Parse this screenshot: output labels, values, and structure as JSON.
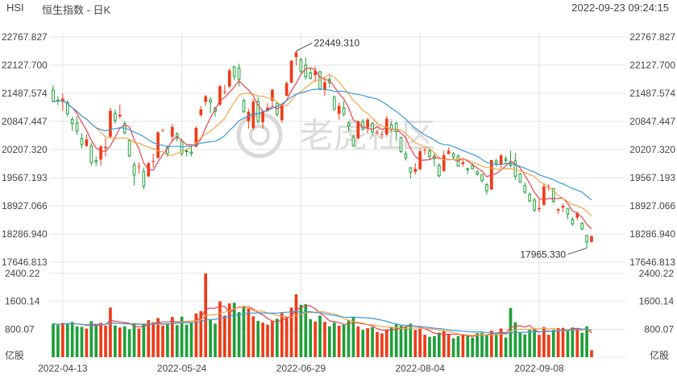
{
  "header": {
    "symbol": "HSI",
    "name": "恒生指数 - 日K",
    "datetime": "2022-09-23 09:24:15"
  },
  "watermark": "老虎社区",
  "colors": {
    "up": "#f03a17",
    "down": "#1e9f3a",
    "ma_red": "#e8424f",
    "ma_orange": "#f7a44a",
    "ma_blue": "#3d9ad6",
    "grid": "#e3e3e3",
    "text": "#444444"
  },
  "chart_data": {
    "type": "candlestick",
    "price_axis": {
      "ticks": [
        "22767.827",
        "22127.700",
        "21487.574",
        "20847.447",
        "20207.320",
        "19567.193",
        "18927.066",
        "18286.940",
        "17646.813"
      ],
      "ylim": [
        17646.813,
        22767.827
      ]
    },
    "volume_axis": {
      "ticks": [
        "2400.22",
        "1600.14",
        "800.07"
      ],
      "unit_label": "亿股",
      "ylim": [
        0,
        2400.22
      ]
    },
    "x_labels": [
      "2022-04-13",
      "2022-05-24",
      "2022-06-29",
      "2022-08-04",
      "2022-09-08"
    ],
    "annotations": [
      {
        "text": "22449.310",
        "kind": "high"
      },
      {
        "text": "17965.330",
        "kind": "low"
      }
    ],
    "candles": [
      {
        "d": "2022-04-11",
        "o": 21560,
        "h": 21680,
        "l": 21280,
        "c": 21300,
        "v": 960
      },
      {
        "d": "2022-04-12",
        "o": 21330,
        "h": 21420,
        "l": 21220,
        "c": 21320,
        "v": 920
      },
      {
        "d": "2022-04-13",
        "o": 21290,
        "h": 21480,
        "l": 21090,
        "c": 21370,
        "v": 980
      },
      {
        "d": "2022-04-14",
        "o": 21280,
        "h": 21330,
        "l": 20960,
        "c": 21020,
        "v": 970
      },
      {
        "d": "2022-04-19",
        "o": 20890,
        "h": 20960,
        "l": 20640,
        "c": 20800,
        "v": 1010
      },
      {
        "d": "2022-04-20",
        "o": 20810,
        "h": 20970,
        "l": 20540,
        "c": 20630,
        "v": 880
      },
      {
        "d": "2022-04-21",
        "o": 20460,
        "h": 20580,
        "l": 20230,
        "c": 20320,
        "v": 870
      },
      {
        "d": "2022-04-22",
        "o": 20290,
        "h": 20560,
        "l": 20270,
        "c": 20440,
        "v": 820
      },
      {
        "d": "2022-04-25",
        "o": 20290,
        "h": 20360,
        "l": 19840,
        "c": 19910,
        "v": 1030
      },
      {
        "d": "2022-04-26",
        "o": 19960,
        "h": 20050,
        "l": 19830,
        "c": 19930,
        "v": 940
      },
      {
        "d": "2022-04-27",
        "o": 19980,
        "h": 20310,
        "l": 19840,
        "c": 20280,
        "v": 980
      },
      {
        "d": "2022-04-28",
        "o": 20240,
        "h": 20470,
        "l": 20050,
        "c": 20270,
        "v": 900
      },
      {
        "d": "2022-04-29",
        "o": 20500,
        "h": 21160,
        "l": 20480,
        "c": 21090,
        "v": 1420
      },
      {
        "d": "2022-05-04",
        "o": 21030,
        "h": 21120,
        "l": 20800,
        "c": 20870,
        "v": 910
      },
      {
        "d": "2022-05-05",
        "o": 20960,
        "h": 21230,
        "l": 20910,
        "c": 21000,
        "v": 850
      },
      {
        "d": "2022-05-06",
        "o": 20800,
        "h": 20850,
        "l": 20550,
        "c": 20590,
        "v": 880
      },
      {
        "d": "2022-05-09",
        "o": 20420,
        "h": 20440,
        "l": 20040,
        "c": 20060,
        "v": 800
      },
      {
        "d": "2022-05-10",
        "o": 19860,
        "h": 19930,
        "l": 19390,
        "c": 19630,
        "v": 980
      },
      {
        "d": "2022-05-11",
        "o": 19820,
        "h": 19920,
        "l": 19660,
        "c": 19830,
        "v": 820
      },
      {
        "d": "2022-05-12",
        "o": 19710,
        "h": 19800,
        "l": 19300,
        "c": 19380,
        "v": 960
      },
      {
        "d": "2022-05-13",
        "o": 19600,
        "h": 19930,
        "l": 19580,
        "c": 19900,
        "v": 1060
      },
      {
        "d": "2022-05-16",
        "o": 19950,
        "h": 20110,
        "l": 19800,
        "c": 19950,
        "v": 1000
      },
      {
        "d": "2022-05-17",
        "o": 20020,
        "h": 20620,
        "l": 20000,
        "c": 20600,
        "v": 1120
      },
      {
        "d": "2022-05-18",
        "o": 20640,
        "h": 20680,
        "l": 20620,
        "c": 20640,
        "v": 900
      },
      {
        "d": "2022-05-19",
        "o": 20250,
        "h": 20310,
        "l": 20040,
        "c": 20120,
        "v": 970
      },
      {
        "d": "2022-05-20",
        "o": 20500,
        "h": 20790,
        "l": 20380,
        "c": 20720,
        "v": 1150
      },
      {
        "d": "2022-05-23",
        "o": 20560,
        "h": 20610,
        "l": 20390,
        "c": 20470,
        "v": 920
      },
      {
        "d": "2022-05-24",
        "o": 20400,
        "h": 20460,
        "l": 20060,
        "c": 20110,
        "v": 1160
      },
      {
        "d": "2022-05-25",
        "o": 20180,
        "h": 20230,
        "l": 20050,
        "c": 20170,
        "v": 930
      },
      {
        "d": "2022-05-26",
        "o": 20150,
        "h": 20300,
        "l": 20050,
        "c": 20120,
        "v": 980
      },
      {
        "d": "2022-05-27",
        "o": 20270,
        "h": 20740,
        "l": 20260,
        "c": 20700,
        "v": 1250
      },
      {
        "d": "2022-05-30",
        "o": 20990,
        "h": 21200,
        "l": 20960,
        "c": 21120,
        "v": 1320
      },
      {
        "d": "2022-05-31",
        "o": 21290,
        "h": 21450,
        "l": 21200,
        "c": 21420,
        "v": 2400
      },
      {
        "d": "2022-06-01",
        "o": 21340,
        "h": 21400,
        "l": 21030,
        "c": 21290,
        "v": 1080
      },
      {
        "d": "2022-06-02",
        "o": 21160,
        "h": 21180,
        "l": 20960,
        "c": 21080,
        "v": 960
      },
      {
        "d": "2022-06-06",
        "o": 21230,
        "h": 21680,
        "l": 21200,
        "c": 21650,
        "v": 1600
      },
      {
        "d": "2022-06-07",
        "o": 21520,
        "h": 21680,
        "l": 21460,
        "c": 21530,
        "v": 1190
      },
      {
        "d": "2022-06-08",
        "o": 21640,
        "h": 22050,
        "l": 21600,
        "c": 22010,
        "v": 1540
      },
      {
        "d": "2022-06-09",
        "o": 22090,
        "h": 22110,
        "l": 21790,
        "c": 21870,
        "v": 1560
      },
      {
        "d": "2022-06-10",
        "o": 22060,
        "h": 22160,
        "l": 21640,
        "c": 21810,
        "v": 1290
      },
      {
        "d": "2022-06-13",
        "o": 21320,
        "h": 21370,
        "l": 21040,
        "c": 21070,
        "v": 1470
      },
      {
        "d": "2022-06-14",
        "o": 20850,
        "h": 21140,
        "l": 20680,
        "c": 21070,
        "v": 1400
      },
      {
        "d": "2022-06-15",
        "o": 20700,
        "h": 21360,
        "l": 20650,
        "c": 21300,
        "v": 1170
      },
      {
        "d": "2022-06-16",
        "o": 21300,
        "h": 21400,
        "l": 20800,
        "c": 20850,
        "v": 1040
      },
      {
        "d": "2022-06-17",
        "o": 20830,
        "h": 21100,
        "l": 20680,
        "c": 21080,
        "v": 990
      },
      {
        "d": "2022-06-20",
        "o": 21090,
        "h": 21260,
        "l": 21060,
        "c": 21160,
        "v": 930
      },
      {
        "d": "2022-06-21",
        "o": 21320,
        "h": 21580,
        "l": 21190,
        "c": 21570,
        "v": 1040
      },
      {
        "d": "2022-06-22",
        "o": 21260,
        "h": 21290,
        "l": 20950,
        "c": 21010,
        "v": 1100
      },
      {
        "d": "2022-06-23",
        "o": 20880,
        "h": 21240,
        "l": 20820,
        "c": 21210,
        "v": 1260
      },
      {
        "d": "2022-06-24",
        "o": 21430,
        "h": 21760,
        "l": 21420,
        "c": 21720,
        "v": 1150
      },
      {
        "d": "2022-06-27",
        "o": 21730,
        "h": 22240,
        "l": 21710,
        "c": 22230,
        "v": 1420
      },
      {
        "d": "2022-06-28",
        "o": 22310,
        "h": 22450,
        "l": 22120,
        "c": 22420,
        "v": 1800
      },
      {
        "d": "2022-06-29",
        "o": 22250,
        "h": 22300,
        "l": 21930,
        "c": 21990,
        "v": 1500
      },
      {
        "d": "2022-06-30",
        "o": 22130,
        "h": 22300,
        "l": 21800,
        "c": 21860,
        "v": 1520
      },
      {
        "d": "2022-07-04",
        "o": 21950,
        "h": 22070,
        "l": 21800,
        "c": 21830,
        "v": 1090
      },
      {
        "d": "2022-07-05",
        "o": 21900,
        "h": 22100,
        "l": 21740,
        "c": 22000,
        "v": 1020
      },
      {
        "d": "2022-07-06",
        "o": 21980,
        "h": 22000,
        "l": 21550,
        "c": 21590,
        "v": 1190
      },
      {
        "d": "2022-07-07",
        "o": 21560,
        "h": 21840,
        "l": 21430,
        "c": 21740,
        "v": 1010
      },
      {
        "d": "2022-07-08",
        "o": 21800,
        "h": 21880,
        "l": 21610,
        "c": 21730,
        "v": 880
      },
      {
        "d": "2022-07-11",
        "o": 21400,
        "h": 21440,
        "l": 21100,
        "c": 21120,
        "v": 990
      },
      {
        "d": "2022-07-12",
        "o": 21020,
        "h": 21280,
        "l": 20890,
        "c": 21200,
        "v": 900
      },
      {
        "d": "2022-07-13",
        "o": 21150,
        "h": 21310,
        "l": 20960,
        "c": 21010,
        "v": 930
      },
      {
        "d": "2022-07-14",
        "o": 20810,
        "h": 20850,
        "l": 20630,
        "c": 20750,
        "v": 1050
      },
      {
        "d": "2022-07-15",
        "o": 20490,
        "h": 20550,
        "l": 20260,
        "c": 20300,
        "v": 1130
      },
      {
        "d": "2022-07-18",
        "o": 20460,
        "h": 20880,
        "l": 20440,
        "c": 20850,
        "v": 880
      },
      {
        "d": "2022-07-19",
        "o": 20850,
        "h": 20900,
        "l": 20660,
        "c": 20670,
        "v": 780
      },
      {
        "d": "2022-07-20",
        "o": 20710,
        "h": 20930,
        "l": 20570,
        "c": 20890,
        "v": 830
      },
      {
        "d": "2022-07-21",
        "o": 20800,
        "h": 20840,
        "l": 20530,
        "c": 20610,
        "v": 860
      },
      {
        "d": "2022-07-22",
        "o": 20600,
        "h": 20650,
        "l": 20560,
        "c": 20600,
        "v": 720
      },
      {
        "d": "2022-07-25",
        "o": 20560,
        "h": 20620,
        "l": 20450,
        "c": 20560,
        "v": 680
      },
      {
        "d": "2022-07-26",
        "o": 20550,
        "h": 20980,
        "l": 20500,
        "c": 20910,
        "v": 790
      },
      {
        "d": "2022-07-27",
        "o": 20770,
        "h": 20850,
        "l": 20600,
        "c": 20670,
        "v": 860
      },
      {
        "d": "2022-07-28",
        "o": 20800,
        "h": 20840,
        "l": 20410,
        "c": 20620,
        "v": 940
      },
      {
        "d": "2022-07-29",
        "o": 20480,
        "h": 20500,
        "l": 20130,
        "c": 20160,
        "v": 900
      },
      {
        "d": "2022-08-01",
        "o": 20100,
        "h": 20180,
        "l": 19960,
        "c": 20020,
        "v": 870
      },
      {
        "d": "2022-08-02",
        "o": 19790,
        "h": 19810,
        "l": 19550,
        "c": 19690,
        "v": 960
      },
      {
        "d": "2022-08-03",
        "o": 19700,
        "h": 19900,
        "l": 19640,
        "c": 19770,
        "v": 780
      },
      {
        "d": "2022-08-04",
        "o": 19760,
        "h": 20240,
        "l": 19740,
        "c": 20170,
        "v": 810
      },
      {
        "d": "2022-08-05",
        "o": 20190,
        "h": 20240,
        "l": 20090,
        "c": 20200,
        "v": 640
      },
      {
        "d": "2022-08-08",
        "o": 20180,
        "h": 20220,
        "l": 19980,
        "c": 20050,
        "v": 580
      },
      {
        "d": "2022-08-09",
        "o": 20060,
        "h": 20120,
        "l": 19830,
        "c": 20000,
        "v": 600
      },
      {
        "d": "2022-08-10",
        "o": 19850,
        "h": 19900,
        "l": 19570,
        "c": 19610,
        "v": 700
      },
      {
        "d": "2022-08-11",
        "o": 19720,
        "h": 20180,
        "l": 19700,
        "c": 20080,
        "v": 760
      },
      {
        "d": "2022-08-12",
        "o": 20110,
        "h": 20260,
        "l": 20100,
        "c": 20180,
        "v": 650
      },
      {
        "d": "2022-08-15",
        "o": 20110,
        "h": 20150,
        "l": 19990,
        "c": 20040,
        "v": 540
      },
      {
        "d": "2022-08-16",
        "o": 20060,
        "h": 20100,
        "l": 19840,
        "c": 19830,
        "v": 600
      },
      {
        "d": "2022-08-17",
        "o": 19880,
        "h": 20010,
        "l": 19820,
        "c": 19920,
        "v": 640
      },
      {
        "d": "2022-08-18",
        "o": 19770,
        "h": 19800,
        "l": 19650,
        "c": 19760,
        "v": 620
      },
      {
        "d": "2022-08-19",
        "o": 19840,
        "h": 19910,
        "l": 19760,
        "c": 19770,
        "v": 560
      },
      {
        "d": "2022-08-22",
        "o": 19700,
        "h": 19740,
        "l": 19600,
        "c": 19650,
        "v": 690
      },
      {
        "d": "2022-08-23",
        "o": 19640,
        "h": 19650,
        "l": 19450,
        "c": 19500,
        "v": 700
      },
      {
        "d": "2022-08-24",
        "o": 19410,
        "h": 19450,
        "l": 19180,
        "c": 19270,
        "v": 640
      },
      {
        "d": "2022-08-25",
        "o": 19300,
        "h": 19970,
        "l": 19290,
        "c": 19970,
        "v": 760
      },
      {
        "d": "2022-08-26",
        "o": 19950,
        "h": 20010,
        "l": 19820,
        "c": 19900,
        "v": 670
      },
      {
        "d": "2022-08-29",
        "o": 19860,
        "h": 20100,
        "l": 19780,
        "c": 20080,
        "v": 820
      },
      {
        "d": "2022-08-30",
        "o": 19990,
        "h": 20060,
        "l": 19900,
        "c": 19960,
        "v": 560
      },
      {
        "d": "2022-08-31",
        "o": 19900,
        "h": 20180,
        "l": 19800,
        "c": 19850,
        "v": 1410
      },
      {
        "d": "2022-09-01",
        "o": 19950,
        "h": 20130,
        "l": 19520,
        "c": 19600,
        "v": 1000
      },
      {
        "d": "2022-09-02",
        "o": 19660,
        "h": 19680,
        "l": 19440,
        "c": 19470,
        "v": 700
      },
      {
        "d": "2022-09-05",
        "o": 19390,
        "h": 19460,
        "l": 19200,
        "c": 19240,
        "v": 650
      },
      {
        "d": "2022-09-06",
        "o": 19190,
        "h": 19230,
        "l": 19010,
        "c": 19040,
        "v": 780
      },
      {
        "d": "2022-09-07",
        "o": 19060,
        "h": 19110,
        "l": 18790,
        "c": 18830,
        "v": 820
      },
      {
        "d": "2022-09-08",
        "o": 18850,
        "h": 19100,
        "l": 18780,
        "c": 18880,
        "v": 640
      },
      {
        "d": "2022-09-09",
        "o": 18950,
        "h": 19420,
        "l": 18930,
        "c": 19370,
        "v": 860
      },
      {
        "d": "2022-09-12",
        "o": 19360,
        "h": 19420,
        "l": 19280,
        "c": 19360,
        "v": 640
      },
      {
        "d": "2022-09-13",
        "o": 19320,
        "h": 19330,
        "l": 18980,
        "c": 19030,
        "v": 780
      },
      {
        "d": "2022-09-14",
        "o": 18820,
        "h": 18870,
        "l": 18740,
        "c": 18850,
        "v": 830
      },
      {
        "d": "2022-09-15",
        "o": 18890,
        "h": 18980,
        "l": 18790,
        "c": 18930,
        "v": 840
      },
      {
        "d": "2022-09-16",
        "o": 18870,
        "h": 18880,
        "l": 18620,
        "c": 18740,
        "v": 780
      },
      {
        "d": "2022-09-19",
        "o": 18620,
        "h": 18680,
        "l": 18470,
        "c": 18520,
        "v": 850
      },
      {
        "d": "2022-09-20",
        "o": 18660,
        "h": 18800,
        "l": 18600,
        "c": 18760,
        "v": 830
      },
      {
        "d": "2022-09-21",
        "o": 18530,
        "h": 18560,
        "l": 18380,
        "c": 18400,
        "v": 700
      },
      {
        "d": "2022-09-22",
        "o": 18250,
        "h": 18270,
        "l": 17970,
        "c": 18110,
        "v": 880
      },
      {
        "d": "2022-09-23",
        "o": 18110,
        "h": 18260,
        "l": 18090,
        "c": 18240,
        "v": 200
      }
    ]
  }
}
